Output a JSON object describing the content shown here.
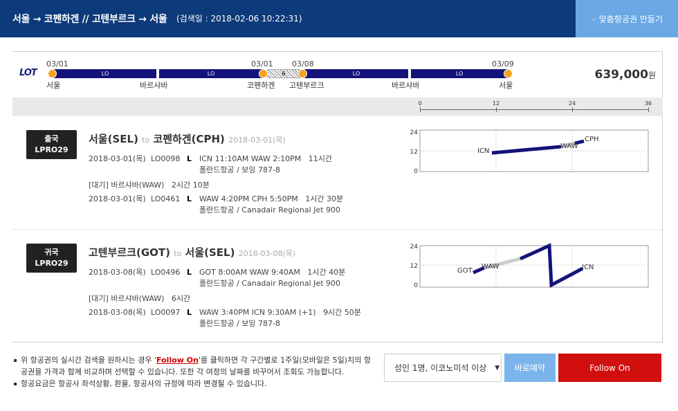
{
  "header": {
    "route": "서울 → 코펜하겐 // 고텐부르크 → 서울",
    "search_date": "(검색일 : 2018-02-06 10:22:31)",
    "custom_button": "맞춤항공권 만들기"
  },
  "timeline": {
    "airline_logo": "LOT",
    "dates": [
      "03/01",
      "03/01",
      "03/08",
      "03/09"
    ],
    "cities": [
      "서울",
      "바르샤바",
      "코펜하겐",
      "고텐부르크",
      "바르샤바",
      "서울"
    ],
    "segments": [
      "LO",
      "LO",
      "LO",
      "LO"
    ],
    "layover_days": "6",
    "price": "639,000",
    "currency": "원"
  },
  "scale": {
    "ticks": [
      "0",
      "12",
      "24",
      "36"
    ]
  },
  "legs": [
    {
      "badge_type": "출국",
      "badge_code": "LPRO29",
      "from": "서울(SEL)",
      "to_word": "to",
      "to": "코펜하겐(CPH)",
      "date": "2018-03-01(목)",
      "flights": [
        {
          "date": "2018-03-01(목)",
          "flight": "LO0098",
          "cls": "L",
          "sched": "ICN 11:10AM WAW 2:10PM",
          "duration": "11시간",
          "aircraft": "폴란드항공 / 보잉 787-8"
        },
        {
          "date": "2018-03-01(목)",
          "flight": "LO0461",
          "cls": "L",
          "sched": "WAW 4:20PM CPH 5:50PM",
          "duration": "1시간 30분",
          "aircraft": "폴란드항공 / Canadair Regional Jet 900"
        }
      ],
      "wait": "[대기] 바르샤바(WAW)",
      "wait_time": "2시간 10분",
      "chart": {
        "labels": [
          "ICN",
          "WAW",
          "CPH"
        ]
      }
    },
    {
      "badge_type": "귀국",
      "badge_code": "LPRO29",
      "from": "고텐부르크(GOT)",
      "to_word": "to",
      "to": "서울(SEL)",
      "date": "2018-03-08(목)",
      "flights": [
        {
          "date": "2018-03-08(목)",
          "flight": "LO0496",
          "cls": "L",
          "sched": "GOT 8:00AM WAW 9:40AM",
          "duration": "1시간 40분",
          "aircraft": "폴란드항공 / Canadair Regional Jet 900"
        },
        {
          "date": "2018-03-08(목)",
          "flight": "LO0097",
          "cls": "L",
          "sched": "WAW 3:40PM ICN 9:30AM (+1)",
          "duration": "9시간 50분",
          "aircraft": "폴란드항공 / 보잉 787-8"
        }
      ],
      "wait": "[대기] 바르샤바(WAW)",
      "wait_time": "6시간",
      "chart": {
        "labels": [
          "GOT",
          "WAW",
          "ICN"
        ]
      }
    }
  ],
  "chart_axis": {
    "y_ticks": [
      "24",
      "12",
      "0"
    ]
  },
  "notes": {
    "n1_a": "위 항공권의 실시간 검색을 원하시는 경우 '",
    "n1_link": "Follow On",
    "n1_b": "'를 클릭하면 각 구간별로 1주일(모바일은 5일)치의 항공권을 가격과 함께 비교하며 선택할 수 있습니다. 또한 각 여정의 날짜를 바꾸어서 조회도 가능합니다.",
    "n2": "항공요금은 항공사 좌석상황, 환율, 항공사의 규정에 따라 변경될 수 있습니다."
  },
  "actions": {
    "pax": "성인 1명, 이코노미석 이상",
    "book": "바로예약",
    "follow": "Follow On"
  },
  "colors": {
    "header": "#0d3a7a",
    "accent": "#6aa7e4",
    "flight_line": "#13137a",
    "dot": "#f7a21b",
    "follow": "#d10f0f"
  }
}
